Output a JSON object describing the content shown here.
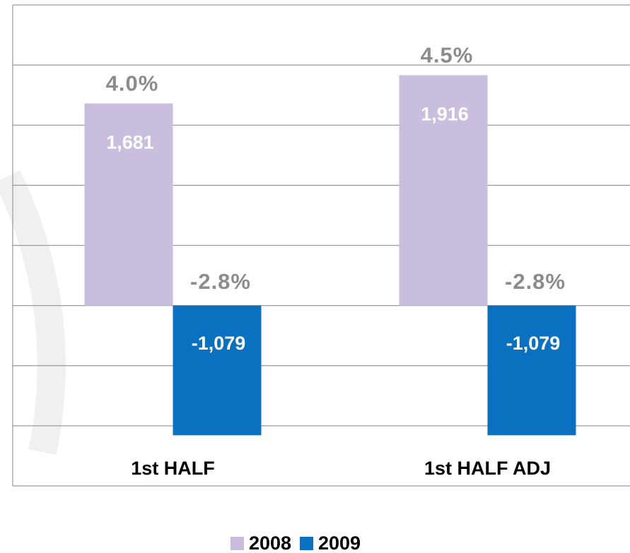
{
  "chart_data": {
    "type": "bar",
    "categories": [
      "1st HALF",
      "1st HALF ADJ"
    ],
    "series": [
      {
        "name": "2008",
        "color": "#c9bedd",
        "values": [
          1681,
          1916
        ],
        "value_labels": [
          "1,681",
          "1,916"
        ],
        "growth": [
          4.0,
          4.5
        ],
        "growth_labels": [
          "4.0%",
          "4.5%"
        ]
      },
      {
        "name": "2009",
        "color": "#0a70c0",
        "values": [
          -1079,
          -1079
        ],
        "value_labels": [
          "-1,079",
          "-1,079"
        ],
        "growth": [
          -2.8,
          -2.8
        ],
        "growth_labels": [
          "-2.8%",
          "-2.8%"
        ]
      }
    ],
    "ylim": [
      -1500,
      2500
    ],
    "yticks": [
      -1500,
      -1000,
      -500,
      0,
      500,
      1000,
      1500,
      2000,
      2500
    ],
    "grid": true,
    "legend": "bottom"
  }
}
